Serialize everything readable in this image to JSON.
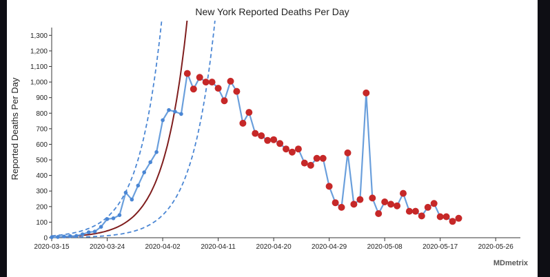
{
  "chart_data": {
    "type": "line",
    "title": "New York Reported Deaths Per Day",
    "ylabel": "Reported Deaths Per Day",
    "xlabel": "",
    "x_tick_labels": [
      "2020-03-15",
      "2020-03-24",
      "2020-04-02",
      "2020-04-11",
      "2020-04-20",
      "2020-04-29",
      "2020-05-08",
      "2020-05-17",
      "2020-05-26"
    ],
    "y_tick_labels": [
      "0",
      "100",
      "200",
      "300",
      "400",
      "500",
      "600",
      "700",
      "800",
      "900",
      "1,000",
      "1,100",
      "1,200",
      "1,300"
    ],
    "xlim": [
      "2020-03-15",
      "2020-05-30"
    ],
    "ylim": [
      0,
      1350
    ],
    "grid": false,
    "colors": {
      "observed_line": "#6a9fdc",
      "early_points": "#4a86d4",
      "later_points": "#c62828",
      "fit_curve": "#7f1d1d",
      "fit_bands": "#4a86d4"
    },
    "series": [
      {
        "values": [
          [
            "2020-03-15",
            3
          ],
          [
            "2020-03-16",
            5
          ],
          [
            "2020-03-17",
            8
          ],
          [
            "2020-03-18",
            10
          ],
          [
            "2020-03-19",
            12
          ],
          [
            "2020-03-20",
            22
          ],
          [
            "2020-03-21",
            35
          ],
          [
            "2020-03-22",
            40
          ],
          [
            "2020-03-23",
            70
          ],
          [
            "2020-03-24",
            120
          ],
          [
            "2020-03-25",
            125
          ],
          [
            "2020-03-26",
            145
          ],
          [
            "2020-03-27",
            290
          ],
          [
            "2020-03-28",
            245
          ],
          [
            "2020-03-29",
            335
          ],
          [
            "2020-03-30",
            420
          ],
          [
            "2020-03-31",
            485
          ],
          [
            "2020-04-01",
            550
          ],
          [
            "2020-04-02",
            755
          ],
          [
            "2020-04-03",
            820
          ],
          [
            "2020-04-04",
            810
          ],
          [
            "2020-04-05",
            795
          ],
          [
            "2020-04-06",
            1055
          ],
          [
            "2020-04-07",
            955
          ],
          [
            "2020-04-08",
            1030
          ],
          [
            "2020-04-09",
            1000
          ],
          [
            "2020-04-10",
            1000
          ],
          [
            "2020-04-11",
            960
          ],
          [
            "2020-04-12",
            880
          ],
          [
            "2020-04-13",
            1005
          ],
          [
            "2020-04-14",
            940
          ],
          [
            "2020-04-15",
            735
          ],
          [
            "2020-04-16",
            805
          ],
          [
            "2020-04-17",
            670
          ],
          [
            "2020-04-18",
            655
          ],
          [
            "2020-04-19",
            625
          ],
          [
            "2020-04-20",
            630
          ],
          [
            "2020-04-21",
            605
          ],
          [
            "2020-04-22",
            570
          ],
          [
            "2020-04-23",
            550
          ],
          [
            "2020-04-24",
            570
          ],
          [
            "2020-04-25",
            480
          ],
          [
            "2020-04-26",
            465
          ],
          [
            "2020-04-27",
            510
          ],
          [
            "2020-04-28",
            510
          ],
          [
            "2020-04-29",
            330
          ],
          [
            "2020-04-30",
            225
          ],
          [
            "2020-05-01",
            195
          ],
          [
            "2020-05-02",
            545
          ],
          [
            "2020-05-03",
            215
          ],
          [
            "2020-05-04",
            245
          ],
          [
            "2020-05-05",
            930
          ],
          [
            "2020-05-06",
            255
          ],
          [
            "2020-05-07",
            155
          ],
          [
            "2020-05-08",
            230
          ],
          [
            "2020-05-09",
            215
          ],
          [
            "2020-05-10",
            205
          ],
          [
            "2020-05-11",
            285
          ],
          [
            "2020-05-12",
            170
          ],
          [
            "2020-05-13",
            170
          ],
          [
            "2020-05-14",
            140
          ],
          [
            "2020-05-15",
            195
          ],
          [
            "2020-05-16",
            220
          ],
          [
            "2020-05-17",
            135
          ],
          [
            "2020-05-18",
            135
          ],
          [
            "2020-05-19",
            105
          ],
          [
            "2020-05-20",
            125
          ]
        ],
        "early_points_through": "2020-04-05"
      }
    ],
    "fit": {
      "start": "2020-03-15",
      "start_value": 4,
      "doubling_days": 2.6,
      "upper_band_start_value": 12,
      "lower_band_start_value": 1.2
    }
  },
  "footer": {
    "brand": "MDmetrix"
  }
}
